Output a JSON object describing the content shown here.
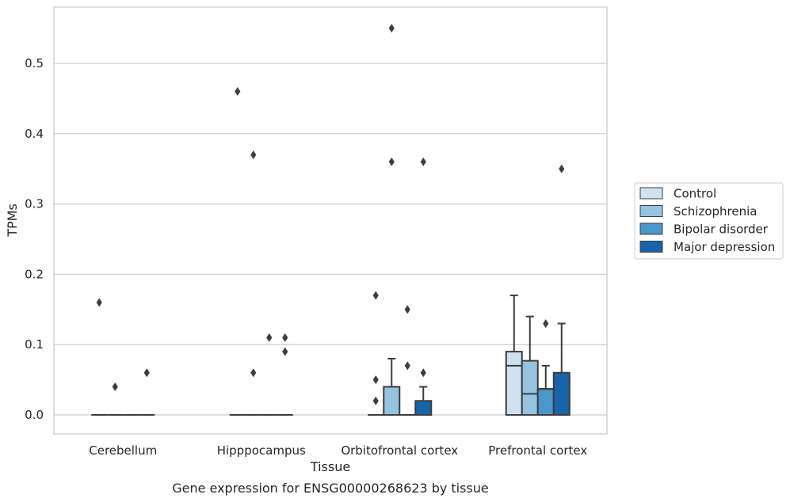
{
  "chart_data": {
    "type": "boxplot",
    "title": "",
    "caption": "Gene expression for ENSG00000268623 by tissue",
    "xlabel": "Tissue",
    "ylabel": "TPMs",
    "ylim": [
      -0.027,
      0.58
    ],
    "yticks": [
      0.0,
      0.1,
      0.2,
      0.3,
      0.4,
      0.5
    ],
    "ytick_labels": [
      "0.0",
      "0.1",
      "0.2",
      "0.3",
      "0.4",
      "0.5"
    ],
    "grid": "horizontal",
    "legend_position": "right",
    "categories": [
      "Cerebellum",
      "Hipppocampus",
      "Orbitofrontal cortex",
      "Prefrontal cortex"
    ],
    "series": [
      {
        "name": "Control",
        "color": "#d0e1f2",
        "boxes": [
          {
            "q1": 0,
            "median": 0,
            "q3": 0,
            "whisker_low": 0,
            "whisker_high": 0,
            "outliers": [
              0.16
            ]
          },
          {
            "q1": 0,
            "median": 0,
            "q3": 0,
            "whisker_low": 0,
            "whisker_high": 0,
            "outliers": [
              0.46
            ]
          },
          {
            "q1": 0,
            "median": 0,
            "q3": 0,
            "whisker_low": 0,
            "whisker_high": 0,
            "outliers": [
              0.17,
              0.05,
              0.02
            ]
          },
          {
            "q1": 0,
            "median": 0.07,
            "q3": 0.09,
            "whisker_low": 0,
            "whisker_high": 0.17,
            "outliers": []
          }
        ]
      },
      {
        "name": "Schizophrenia",
        "color": "#94c4df",
        "boxes": [
          {
            "q1": 0,
            "median": 0,
            "q3": 0,
            "whisker_low": 0,
            "whisker_high": 0,
            "outliers": [
              0.04
            ]
          },
          {
            "q1": 0,
            "median": 0,
            "q3": 0,
            "whisker_low": 0,
            "whisker_high": 0,
            "outliers": [
              0.37,
              0.06
            ]
          },
          {
            "q1": 0,
            "median": 0,
            "q3": 0.04,
            "whisker_low": 0,
            "whisker_high": 0.08,
            "outliers": [
              0.55,
              0.36
            ]
          },
          {
            "q1": 0,
            "median": 0.03,
            "q3": 0.077,
            "whisker_low": 0,
            "whisker_high": 0.14,
            "outliers": []
          }
        ]
      },
      {
        "name": "Bipolar disorder",
        "color": "#4a98c9",
        "boxes": [
          {
            "q1": 0,
            "median": 0,
            "q3": 0,
            "whisker_low": 0,
            "whisker_high": 0,
            "outliers": []
          },
          {
            "q1": 0,
            "median": 0,
            "q3": 0,
            "whisker_low": 0,
            "whisker_high": 0,
            "outliers": [
              0.11
            ]
          },
          {
            "q1": 0,
            "median": 0,
            "q3": 0,
            "whisker_low": 0,
            "whisker_high": 0,
            "outliers": [
              0.15,
              0.07
            ]
          },
          {
            "q1": 0,
            "median": 0.037,
            "q3": 0.037,
            "whisker_low": 0,
            "whisker_high": 0.07,
            "outliers": [
              0.13
            ]
          }
        ]
      },
      {
        "name": "Major depression",
        "color": "#1764ab",
        "boxes": [
          {
            "q1": 0,
            "median": 0,
            "q3": 0,
            "whisker_low": 0,
            "whisker_high": 0,
            "outliers": [
              0.06
            ]
          },
          {
            "q1": 0,
            "median": 0,
            "q3": 0,
            "whisker_low": 0,
            "whisker_high": 0,
            "outliers": [
              0.11,
              0.09
            ]
          },
          {
            "q1": 0,
            "median": 0,
            "q3": 0.02,
            "whisker_low": 0,
            "whisker_high": 0.04,
            "outliers": [
              0.36,
              0.06
            ]
          },
          {
            "q1": 0,
            "median": 0,
            "q3": 0.06,
            "whisker_low": 0,
            "whisker_high": 0.13,
            "outliers": [
              0.35
            ]
          }
        ]
      }
    ]
  }
}
